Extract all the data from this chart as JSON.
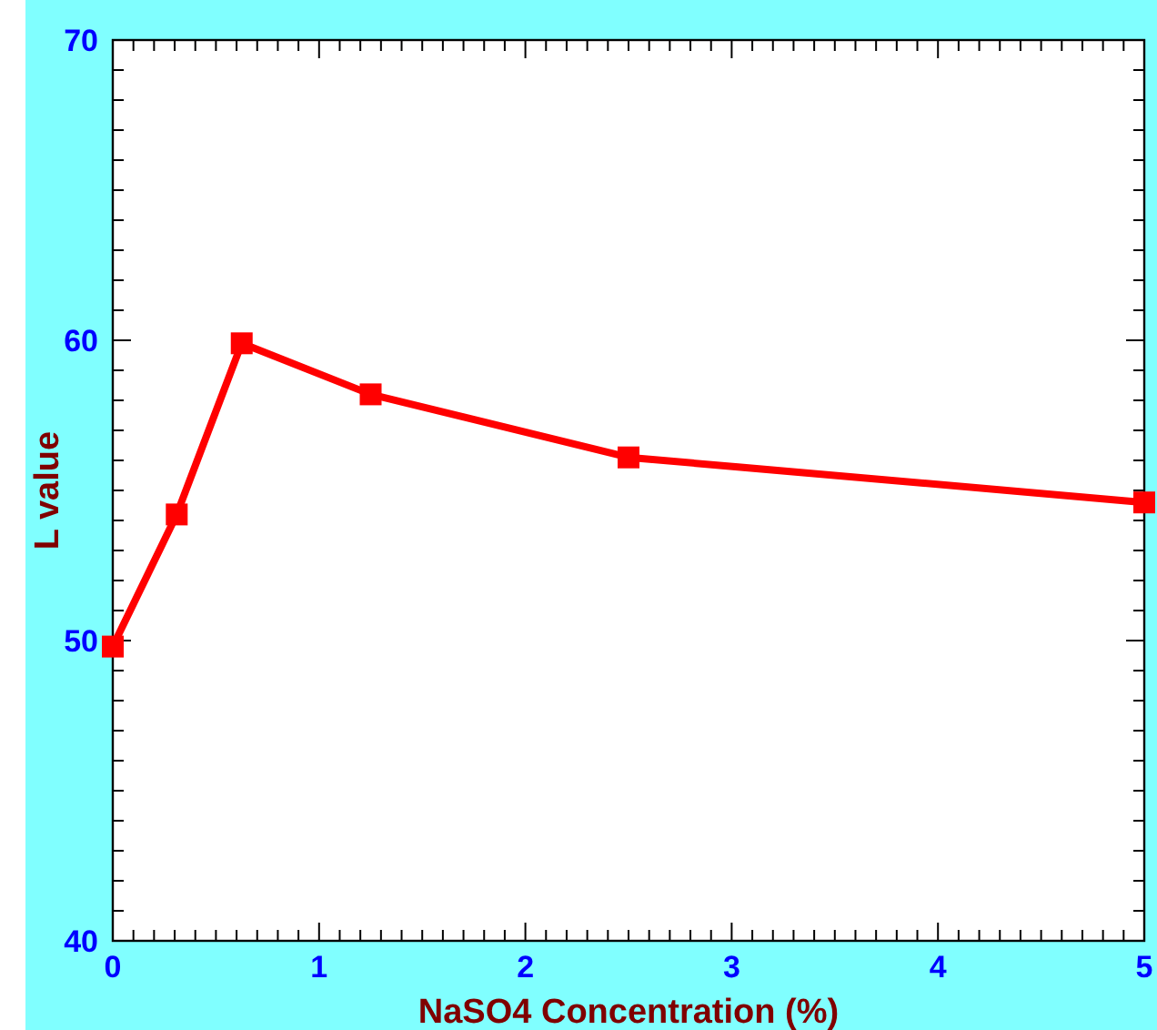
{
  "chart_data": {
    "type": "line",
    "xlabel": "NaSO4 Concentration (%)",
    "ylabel": "L value",
    "x": [
      0,
      0.31,
      0.625,
      1.25,
      2.5,
      5
    ],
    "series": [
      {
        "color": "#ff0000",
        "values": [
          49.8,
          54.2,
          59.9,
          58.2,
          56.1,
          54.6
        ]
      }
    ],
    "marker": "square",
    "line_style": "solid",
    "grid": false,
    "xlim": [
      0,
      5
    ],
    "ylim": [
      40,
      70
    ],
    "xticks": [
      0,
      {
        "value": 0.1,
        "label": null
      },
      {
        "value": 0.2,
        "label": null
      },
      {
        "value": 0.3,
        "label": null
      },
      {
        "value": 0.4,
        "label": null
      },
      {
        "value": 0.5,
        "label": null
      },
      {
        "value": 0.6,
        "label": null
      },
      {
        "value": 0.7,
        "label": null
      },
      {
        "value": 0.8,
        "label": null
      },
      {
        "value": 0.9,
        "label": null
      },
      1,
      {
        "value": 1.1,
        "label": null
      },
      {
        "value": 1.2,
        "label": null
      },
      {
        "value": 1.3,
        "label": null
      },
      {
        "value": 1.4,
        "label": null
      },
      {
        "value": 1.5,
        "label": null
      },
      {
        "value": 1.6,
        "label": null
      },
      {
        "value": 1.7,
        "label": null
      },
      {
        "value": 1.8,
        "label": null
      },
      {
        "value": 1.9,
        "label": null
      },
      2,
      {
        "value": 2.1,
        "label": null
      },
      {
        "value": 2.2,
        "label": null
      },
      {
        "value": 2.3,
        "label": null
      },
      {
        "value": 2.4,
        "label": null
      },
      {
        "value": 2.5,
        "label": null
      },
      {
        "value": 2.6,
        "label": null
      },
      {
        "value": 2.7,
        "label": null
      },
      {
        "value": 2.8,
        "label": null
      },
      {
        "value": 2.9,
        "label": null
      },
      3,
      {
        "value": 3.1,
        "label": null
      },
      {
        "value": 3.2,
        "label": null
      },
      {
        "value": 3.3,
        "label": null
      },
      {
        "value": 3.4,
        "label": null
      },
      {
        "value": 3.5,
        "label": null
      },
      {
        "value": 3.6,
        "label": null
      },
      {
        "value": 3.7,
        "label": null
      },
      {
        "value": 3.8,
        "label": null
      },
      {
        "value": 3.9,
        "label": null
      },
      4,
      {
        "value": 4.1,
        "label": null
      },
      {
        "value": 4.2,
        "label": null
      },
      {
        "value": 4.3,
        "label": null
      },
      {
        "value": 4.4,
        "label": null
      },
      {
        "value": 4.5,
        "label": null
      },
      {
        "value": 4.6,
        "label": null
      },
      {
        "value": 4.7,
        "label": null
      },
      {
        "value": 4.8,
        "label": null
      },
      {
        "value": 4.9,
        "label": null
      },
      5
    ],
    "yticks": [
      40,
      {
        "value": 41,
        "label": null
      },
      {
        "value": 42,
        "label": null
      },
      {
        "value": 43,
        "label": null
      },
      {
        "value": 44,
        "label": null
      },
      {
        "value": 45,
        "label": null
      },
      {
        "value": 46,
        "label": null
      },
      {
        "value": 47,
        "label": null
      },
      {
        "value": 48,
        "label": null
      },
      {
        "value": 49,
        "label": null
      },
      50,
      {
        "value": 51,
        "label": null
      },
      {
        "value": 52,
        "label": null
      },
      {
        "value": 53,
        "label": null
      },
      {
        "value": 54,
        "label": null
      },
      {
        "value": 55,
        "label": null
      },
      {
        "value": 56,
        "label": null
      },
      {
        "value": 57,
        "label": null
      },
      {
        "value": 58,
        "label": null
      },
      {
        "value": 59,
        "label": null
      },
      60,
      {
        "value": 61,
        "label": null
      },
      {
        "value": 62,
        "label": null
      },
      {
        "value": 63,
        "label": null
      },
      {
        "value": 64,
        "label": null
      },
      {
        "value": 65,
        "label": null
      },
      {
        "value": 66,
        "label": null
      },
      {
        "value": 67,
        "label": null
      },
      {
        "value": 68,
        "label": null
      },
      {
        "value": 69,
        "label": null
      },
      70
    ]
  }
}
